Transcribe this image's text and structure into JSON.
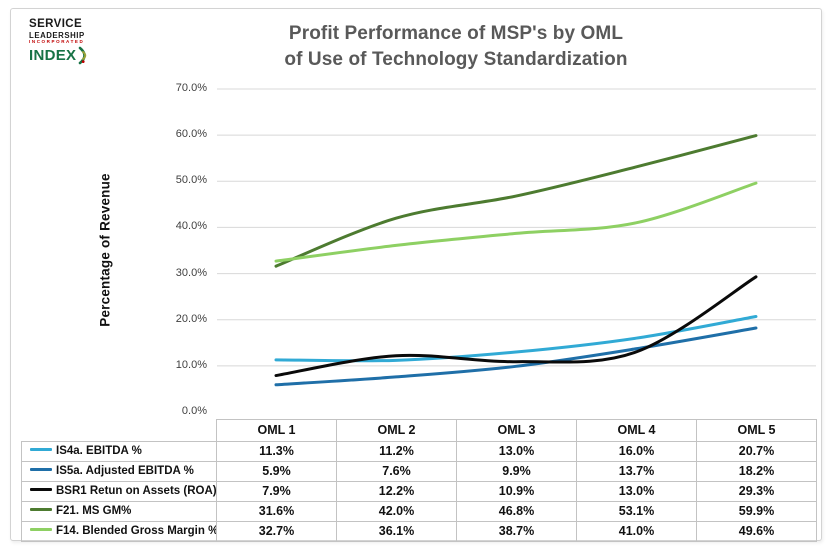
{
  "logo": {
    "line1": "SERVICE",
    "line2": "LEADERSHIP",
    "line3": "INCORPORATED",
    "line4": "INDEX",
    "brand_green": "#177245",
    "brand_red": "#c00000"
  },
  "chart": {
    "title_line1": "Profit Performance of MSP's by OML",
    "title_line2": "of Use of Technology Standardization",
    "y_axis_label": "Percentage of Revenue",
    "y_ticks": [
      "70.0%",
      "60.0%",
      "50.0%",
      "40.0%",
      "30.0%",
      "20.0%",
      "10.0%",
      "0.0%"
    ]
  },
  "chart_data": {
    "type": "line",
    "title": "Profit Performance of MSP's by OML of Use of Technology Standardization",
    "xlabel": "",
    "ylabel": "Percentage of Revenue",
    "ylim": [
      0,
      70
    ],
    "y_tick_step": 10,
    "grid": true,
    "smooth_lines": true,
    "legend_position": "table-left",
    "gridline_color": "#d8d8d8",
    "categories": [
      "OML 1",
      "OML 2",
      "OML 3",
      "OML 4",
      "OML 5"
    ],
    "series": [
      {
        "name": "IS4a. EBITDA %",
        "color": "#31aad5",
        "values": [
          11.3,
          11.2,
          13.0,
          16.0,
          20.7
        ]
      },
      {
        "name": "IS5a. Adjusted EBITDA %",
        "color": "#1f6fa8",
        "values": [
          5.9,
          7.6,
          9.9,
          13.7,
          18.2
        ]
      },
      {
        "name": "BSR1 Retun on Assets (ROA)",
        "color": "#0a0a0a",
        "values": [
          7.9,
          12.2,
          10.9,
          13.0,
          29.3
        ]
      },
      {
        "name": "F21. MS GM%",
        "color": "#4d7b30",
        "values": [
          31.6,
          42.0,
          46.8,
          53.1,
          59.9
        ]
      },
      {
        "name": "F14. Blended Gross Margin %",
        "color": "#8ed063",
        "values": [
          32.7,
          36.1,
          38.7,
          41.0,
          49.6
        ]
      }
    ]
  }
}
